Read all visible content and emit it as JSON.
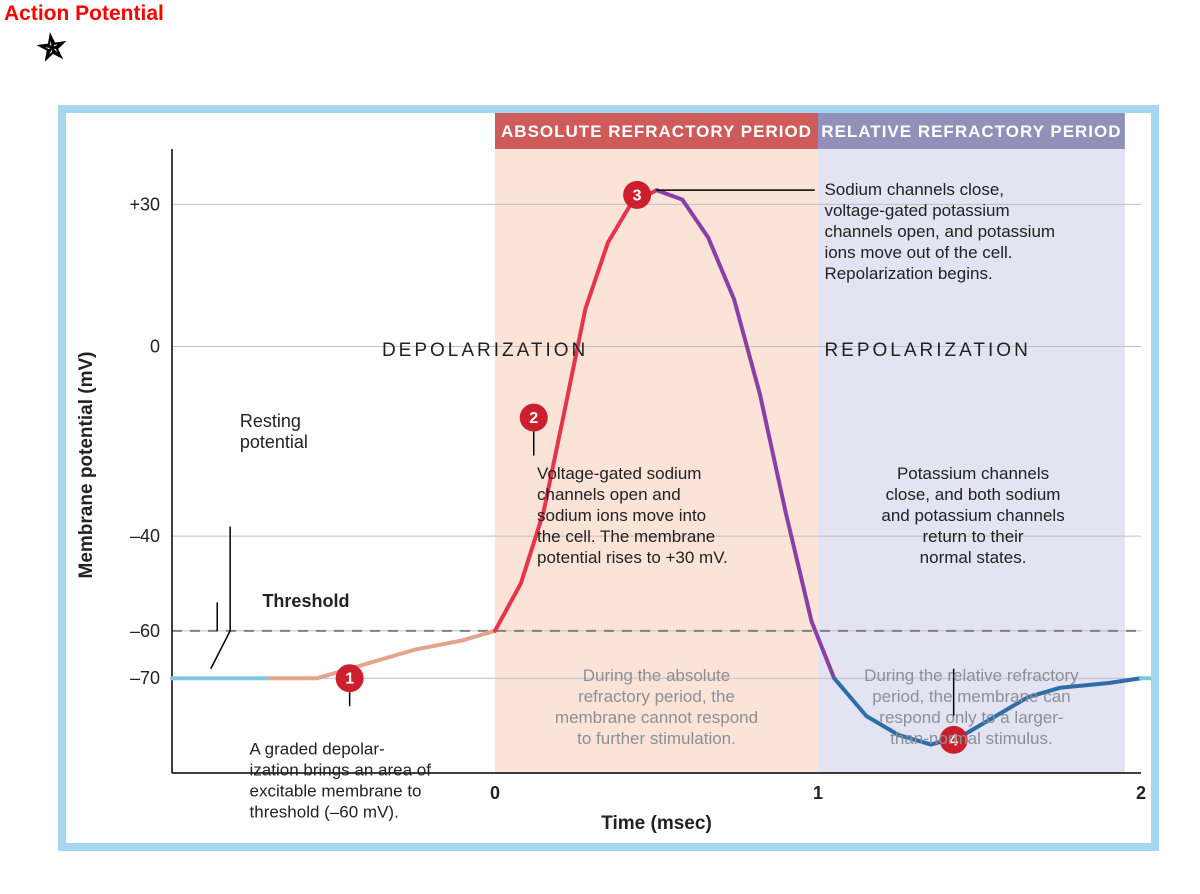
{
  "title": "Action Potential",
  "chart": {
    "type": "line",
    "x_axis": {
      "label": "Time (msec)",
      "lim": [
        -1.0,
        2.0
      ],
      "ticks": [
        0,
        1,
        2
      ],
      "fontsize": 18,
      "label_fontsize": 19
    },
    "y_axis": {
      "label": "Membrane potential (mV)",
      "lim": [
        -90,
        40
      ],
      "ticks": [
        30,
        0,
        -40,
        -60,
        -70
      ],
      "tick_labels": [
        "+30",
        "0",
        "–40",
        "–60",
        "–70"
      ],
      "fontsize": 18,
      "label_fontsize": 19
    },
    "background_color": "#ffffff",
    "frame_border_color": "#a8d6f0",
    "grid_color": "#bfbfbf",
    "threshold_line": {
      "value": -60,
      "style": "dashed",
      "color": "#808080",
      "width": 2
    },
    "regions": [
      {
        "name": "ABSOLUTE REFRACTORY PERIOD",
        "x_start": 0.0,
        "x_end": 1.0,
        "fill": "#fbe3d7",
        "header_fill": "#cf5a5a"
      },
      {
        "name": "RELATIVE REFRACTORY PERIOD",
        "x_start": 1.0,
        "x_end": 1.95,
        "fill": "#e3e3f2",
        "header_fill": "#9090b8"
      }
    ],
    "curve": {
      "line_width": 4,
      "segments": [
        {
          "color": "#7fc7e8",
          "points": [
            [
              -1.0,
              -70
            ],
            [
              -0.7,
              -70
            ]
          ]
        },
        {
          "color": "#e3a48c",
          "points": [
            [
              -0.7,
              -70
            ],
            [
              -0.55,
              -70
            ],
            [
              -0.4,
              -67
            ],
            [
              -0.25,
              -64
            ],
            [
              -0.1,
              -62
            ],
            [
              0.0,
              -60
            ]
          ]
        },
        {
          "color": "#e6344a",
          "points": [
            [
              0.0,
              -60
            ],
            [
              0.08,
              -50
            ],
            [
              0.15,
              -35
            ],
            [
              0.22,
              -12
            ],
            [
              0.28,
              8
            ],
            [
              0.35,
              22
            ],
            [
              0.42,
              30
            ],
            [
              0.5,
              33
            ]
          ]
        },
        {
          "color": "#8a3fa8",
          "points": [
            [
              0.5,
              33
            ],
            [
              0.58,
              31
            ],
            [
              0.66,
              23
            ],
            [
              0.74,
              10
            ],
            [
              0.82,
              -10
            ],
            [
              0.9,
              -35
            ],
            [
              0.98,
              -58
            ],
            [
              1.05,
              -70
            ]
          ]
        },
        {
          "color": "#2e6da8",
          "points": [
            [
              1.05,
              -70
            ],
            [
              1.15,
              -78
            ],
            [
              1.25,
              -82
            ],
            [
              1.35,
              -84
            ],
            [
              1.45,
              -82
            ],
            [
              1.55,
              -78
            ],
            [
              1.65,
              -74
            ],
            [
              1.75,
              -72
            ],
            [
              1.9,
              -71
            ],
            [
              2.0,
              -70
            ]
          ]
        },
        {
          "color": "#7fc7e8",
          "points": [
            [
              2.0,
              -70
            ],
            [
              2.15,
              -70
            ]
          ]
        }
      ]
    },
    "phase_labels": {
      "depolarization": "DEPOLARIZATION",
      "repolarization": "REPOLARIZATION"
    },
    "resting_label": "Resting\npotential",
    "threshold_label": "Threshold",
    "markers": [
      {
        "n": "1",
        "x": -0.45,
        "y": -70,
        "color": "#cc1f2e",
        "radius": 14
      },
      {
        "n": "2",
        "x": 0.12,
        "y": -15,
        "color": "#cc1f2e",
        "radius": 14
      },
      {
        "n": "3",
        "x": 0.44,
        "y": 32,
        "color": "#cc1f2e",
        "radius": 14
      },
      {
        "n": "4",
        "x": 1.42,
        "y": -83,
        "color": "#cc1f2e",
        "radius": 14
      }
    ],
    "annotations": {
      "m1": "A graded depolar-\nization brings an area of\nexcitable membrane to\nthreshold (–60 mV).",
      "m2": "Voltage-gated sodium\nchannels open and\nsodium ions move into\nthe cell. The membrane\npotential rises to +30 mV.",
      "m3": "Sodium channels close,\nvoltage-gated potassium\nchannels open, and potassium\nions move out of the cell.\nRepolarization begins.",
      "m4": "Potassium channels\nclose, and both sodium\nand potassium channels\nreturn to their\nnormal states.",
      "abs_note": "During the absolute\nrefractory period, the\nmembrane cannot respond\nto further stimulation.",
      "rel_note": "During the relative refractory\nperiod, the membrane can\nrespond only to a larger-\nthan-normal stimulus."
    }
  }
}
